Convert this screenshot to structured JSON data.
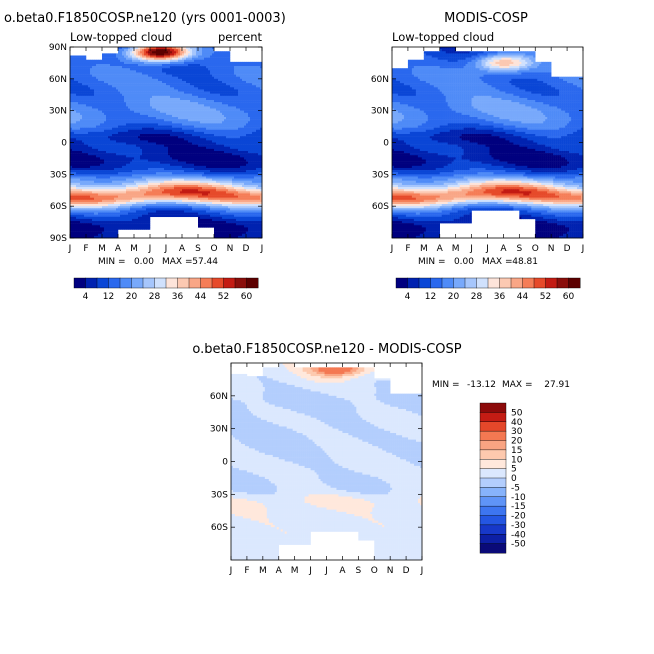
{
  "chart_data": [
    {
      "type": "heatmap",
      "title": "o.beta0.F1850COSP.ne120 (yrs 0001-0003)",
      "left_label": "Low-topped cloud",
      "right_label": "percent",
      "x_ticks": [
        "J",
        "F",
        "M",
        "A",
        "M",
        "J",
        "J",
        "A",
        "S",
        "O",
        "N",
        "D",
        "J"
      ],
      "y_ticks": [
        "90N",
        "60N",
        "30N",
        "0",
        "30S",
        "60S",
        "90S"
      ],
      "ylim": [
        -90,
        90
      ],
      "min_label": "MIN =",
      "min_value": "0.00",
      "max_label": "MAX =",
      "max_value": "57.44",
      "hot_lat": 85,
      "hot_month": 5.6,
      "hot_peak": 57.44,
      "trop_min": 5,
      "mask": {
        "north": [
          [
            0,
            1,
            82
          ],
          [
            1,
            2,
            78
          ],
          [
            2,
            3,
            84
          ],
          [
            9,
            10,
            86
          ],
          [
            10,
            12,
            75
          ]
        ],
        "south": [
          [
            3,
            5,
            -82
          ],
          [
            5,
            8,
            -70
          ],
          [
            8,
            9,
            -80
          ]
        ]
      },
      "colorbar": {
        "labels": [
          "4",
          "12",
          "20",
          "28",
          "36",
          "44",
          "52",
          "60"
        ],
        "levels": [
          4,
          8,
          12,
          16,
          20,
          24,
          28,
          32,
          36,
          40,
          44,
          48,
          52,
          56,
          60
        ]
      }
    },
    {
      "type": "heatmap",
      "title": "MODIS-COSP",
      "left_label": "Low-topped cloud",
      "right_label": "",
      "x_ticks": [
        "J",
        "F",
        "M",
        "A",
        "M",
        "J",
        "J",
        "A",
        "S",
        "O",
        "N",
        "D",
        "J"
      ],
      "y_ticks": [
        "60N",
        "30N",
        "0",
        "30S",
        "60S"
      ],
      "ylim": [
        -90,
        90
      ],
      "min_label": "MIN =",
      "min_value": "0.00",
      "max_label": "MAX =",
      "max_value": "48.81",
      "hot_lat": 75,
      "hot_month": 7,
      "hot_peak": 30,
      "trop_min": 5,
      "mask": {
        "north": [
          [
            0,
            1,
            70
          ],
          [
            1,
            2,
            78
          ],
          [
            2,
            3,
            85
          ],
          [
            4,
            9,
            85
          ],
          [
            9,
            10,
            75
          ],
          [
            10,
            12,
            62
          ]
        ],
        "south": [
          [
            3,
            5,
            -75
          ],
          [
            5,
            8,
            -63
          ],
          [
            8,
            9,
            -72
          ]
        ]
      },
      "colorbar": {
        "labels": [
          "4",
          "12",
          "20",
          "28",
          "36",
          "44",
          "52",
          "60"
        ],
        "levels": [
          4,
          8,
          12,
          16,
          20,
          24,
          28,
          32,
          36,
          40,
          44,
          48,
          52,
          56,
          60
        ]
      }
    },
    {
      "type": "heatmap",
      "title": "o.beta0.F1850COSP.ne120 - MODIS-COSP",
      "x_ticks": [
        "J",
        "F",
        "M",
        "A",
        "M",
        "J",
        "J",
        "A",
        "S",
        "O",
        "N",
        "D",
        "J"
      ],
      "y_ticks": [
        "60N",
        "30N",
        "0",
        "30S",
        "60S"
      ],
      "ylim": [
        -90,
        90
      ],
      "min_label": "MIN =",
      "min_value": "-13.12",
      "max_label": "MAX =",
      "max_value": "27.91",
      "mask": {
        "north": [
          [
            0,
            1,
            80
          ],
          [
            1,
            2,
            78
          ],
          [
            2,
            3,
            85
          ],
          [
            4,
            9,
            85
          ],
          [
            9,
            10,
            75
          ],
          [
            10,
            12,
            62
          ]
        ],
        "south": [
          [
            3,
            5,
            -75
          ],
          [
            5,
            8,
            -63
          ],
          [
            8,
            9,
            -72
          ]
        ]
      },
      "colorbar": {
        "labels": [
          "50",
          "40",
          "30",
          "20",
          "15",
          "10",
          "5",
          "0",
          "-5",
          "-10",
          "-15",
          "-20",
          "-30",
          "-40",
          "-50"
        ],
        "levels": [
          -50,
          -40,
          -30,
          -20,
          -15,
          -10,
          -5,
          0,
          5,
          10,
          15,
          20,
          30,
          40,
          50
        ]
      }
    }
  ],
  "colors": {
    "seq": [
      "#00007f",
      "#0022b0",
      "#0a46d6",
      "#2a68ee",
      "#4f8bf7",
      "#78a9fb",
      "#a6c6fc",
      "#d0e1fd",
      "#fde4da",
      "#fcc9b2",
      "#f9a686",
      "#f57d57",
      "#e64a2a",
      "#c31b13",
      "#8a0e0b",
      "#5c0000"
    ],
    "div": [
      "#0a0a78",
      "#0d1fa5",
      "#1738c9",
      "#2456e2",
      "#3d75f0",
      "#5f94f7",
      "#87b3fb",
      "#b3cefd",
      "#dbe8fe",
      "#ffe8dc",
      "#fdc9ae",
      "#f9a482",
      "#f47852",
      "#e4472a",
      "#c41c14",
      "#8c0a0a"
    ]
  }
}
